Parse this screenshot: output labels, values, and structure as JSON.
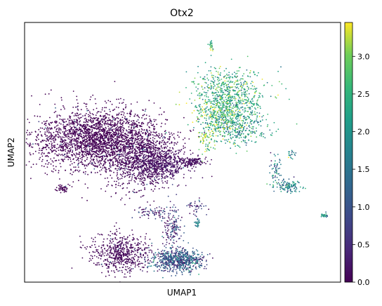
{
  "chart_data": {
    "type": "scatter",
    "title": "Otx2",
    "xlabel": "UMAP1",
    "ylabel": "UMAP2",
    "colorbar": {
      "colormap": "viridis",
      "range": [
        0,
        3.45
      ],
      "ticks": [
        "0.0",
        "0.5",
        "1.0",
        "1.5",
        "2.0",
        "2.5",
        "3.0"
      ],
      "tick_values": [
        0,
        0.5,
        1.0,
        1.5,
        2.0,
        2.5,
        3.0
      ]
    },
    "clusters": [
      {
        "x": -7.6,
        "y": 4.2,
        "sx": 2.4,
        "sy": 1.4,
        "n": 2600,
        "expr": 0.0
      },
      {
        "x": -4.3,
        "y": 2.2,
        "sx": 1.2,
        "sy": 1.3,
        "n": 900,
        "expr": 0.05
      },
      {
        "x": -2.8,
        "y": 1.8,
        "sx": 1.0,
        "sy": 0.6,
        "n": 350,
        "expr": 0.2
      },
      {
        "x": -0.8,
        "y": 2.1,
        "sx": 0.5,
        "sy": 0.2,
        "n": 120,
        "expr": 0.1
      },
      {
        "x": -10.2,
        "y": -0.4,
        "sx": 0.2,
        "sy": 0.2,
        "n": 40,
        "expr": 0.0
      },
      {
        "x": 1.9,
        "y": 7.9,
        "sx": 1.3,
        "sy": 1.4,
        "n": 850,
        "expr": 2.4
      },
      {
        "x": 2.5,
        "y": 5.2,
        "sx": 0.9,
        "sy": 0.8,
        "n": 260,
        "expr": 2.0
      },
      {
        "x": 0.2,
        "y": 4.0,
        "sx": 0.3,
        "sy": 0.6,
        "n": 60,
        "expr": 2.9
      },
      {
        "x": 1.2,
        "y": 6.2,
        "sx": 0.9,
        "sy": 0.9,
        "n": 220,
        "expr": 2.8
      },
      {
        "x": 0.6,
        "y": 12.8,
        "sx": 0.1,
        "sy": 0.3,
        "n": 25,
        "expr": 2.4
      },
      {
        "x": 6.2,
        "y": -0.1,
        "sx": 0.5,
        "sy": 0.3,
        "n": 120,
        "expr": 1.8
      },
      {
        "x": 5.3,
        "y": 1.5,
        "sx": 0.2,
        "sy": 0.6,
        "n": 50,
        "expr": 1.6
      },
      {
        "x": 6.4,
        "y": 2.8,
        "sx": 0.2,
        "sy": 0.2,
        "n": 20,
        "expr": 2.0
      },
      {
        "x": 8.8,
        "y": -2.8,
        "sx": 0.15,
        "sy": 0.12,
        "n": 30,
        "expr": 1.7
      },
      {
        "x": -6.0,
        "y": -6.3,
        "sx": 1.1,
        "sy": 0.9,
        "n": 600,
        "expr": 0.05
      },
      {
        "x": -1.8,
        "y": -7.0,
        "sx": 0.9,
        "sy": 0.5,
        "n": 700,
        "expr": 1.1
      },
      {
        "x": -2.2,
        "y": -4.0,
        "sx": 0.35,
        "sy": 1.0,
        "n": 150,
        "expr": 0.5
      },
      {
        "x": -3.5,
        "y": -2.6,
        "sx": 0.6,
        "sy": 0.3,
        "n": 70,
        "expr": 0.5
      },
      {
        "x": -0.5,
        "y": -2.0,
        "sx": 0.3,
        "sy": 0.4,
        "n": 40,
        "expr": 0.6
      },
      {
        "x": -0.4,
        "y": -3.4,
        "sx": 0.12,
        "sy": 0.2,
        "n": 25,
        "expr": 1.5
      }
    ],
    "xlim": [
      -13,
      10
    ],
    "ylim": [
      -9,
      15
    ],
    "point_count_approx": 8000
  }
}
